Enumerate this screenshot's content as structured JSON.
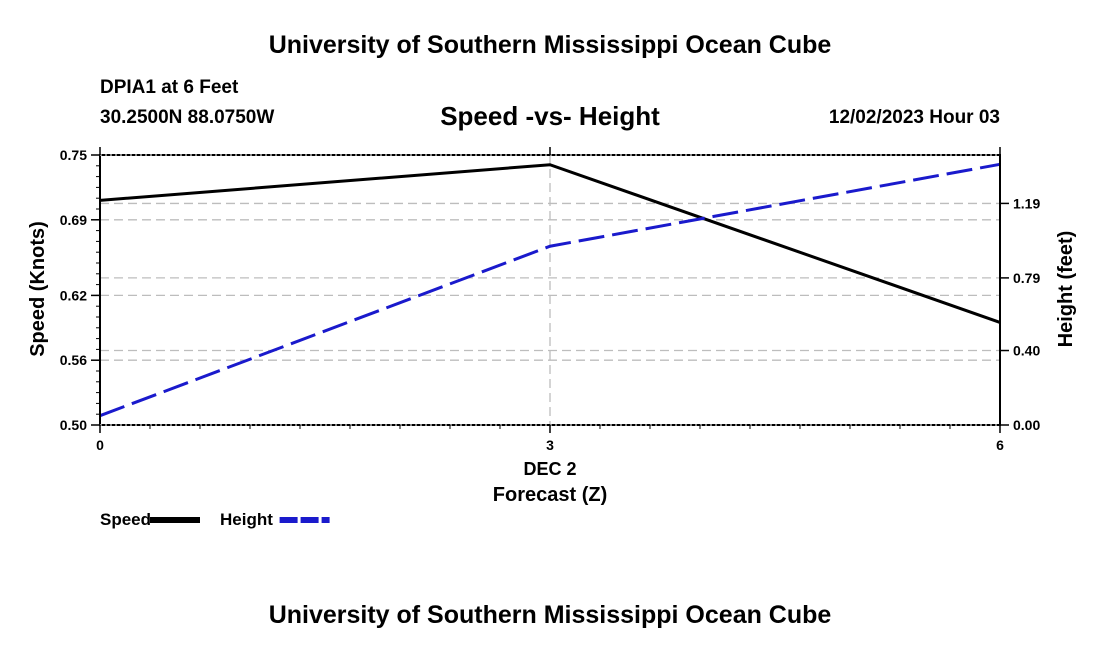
{
  "header": {
    "title": "University of Southern Mississippi Ocean Cube",
    "station": "DPIA1 at 6 Feet",
    "coords": "30.2500N  88.0750W",
    "subtitle": "Speed -vs- Height",
    "date": "12/02/2023 Hour 03"
  },
  "footer": {
    "title": "University of Southern Mississippi Ocean Cube"
  },
  "chart_data": {
    "type": "line",
    "title": "Speed -vs- Height",
    "xlabel": "Forecast (Z)",
    "xsublabel": "DEC 2",
    "ylabel_left": "Speed (Knots)",
    "ylabel_right": "Height (feet)",
    "x": [
      0,
      3,
      6
    ],
    "xticks": [
      "0",
      "3",
      "6"
    ],
    "xlim": [
      0,
      6
    ],
    "ylim_left": [
      0.5,
      0.75
    ],
    "yticks_left": [
      "0.75",
      "0.69",
      "0.62",
      "0.56",
      "0.50"
    ],
    "ylim_right": [
      0.0,
      1.45
    ],
    "yticks_right": [
      "1.19",
      "0.79",
      "0.40",
      "0.00"
    ],
    "series": [
      {
        "name": "Speed",
        "axis": "left",
        "color": "#000000",
        "style": "solid",
        "values": [
          0.708,
          0.741,
          0.595
        ]
      },
      {
        "name": "Height",
        "axis": "right",
        "color": "#1a1acc",
        "style": "dashed",
        "values": [
          0.05,
          0.96,
          1.4
        ]
      }
    ],
    "legend": [
      "Speed",
      "Height"
    ],
    "legend_position": "bottom-left",
    "grid": true
  }
}
